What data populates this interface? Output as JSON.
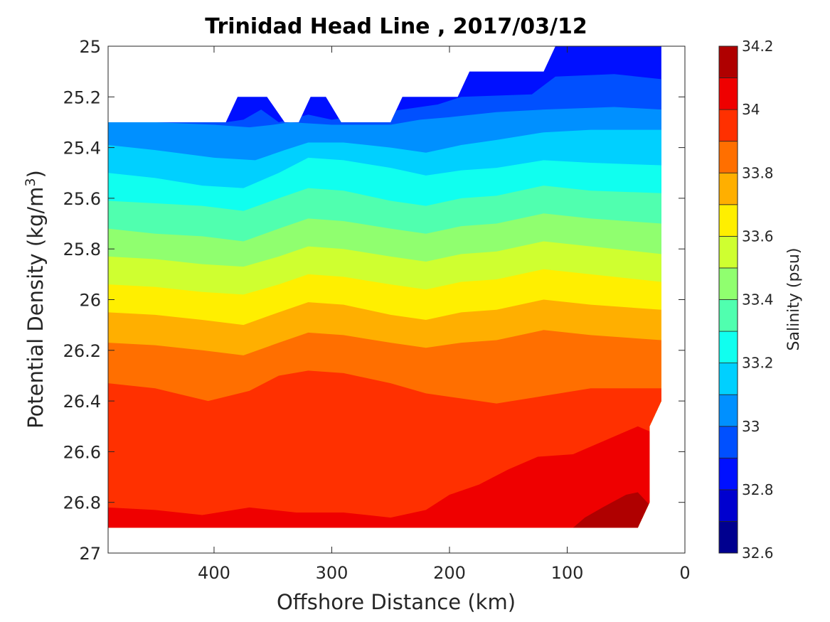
{
  "chart_data": {
    "type": "contour",
    "title": "Trinidad Head Line , 2017/03/12",
    "xlabel": "Offshore Distance (km)",
    "ylabel_main": "Potential Density (kg/m",
    "ylabel_sup": "3",
    "ylabel_close": ")",
    "colorbar_label": "Salinity (psu)",
    "xlim": [
      490,
      0
    ],
    "ylim": [
      25,
      27
    ],
    "x_ticks": [
      400,
      300,
      200,
      100,
      0
    ],
    "x_tick_labels": [
      "400",
      "300",
      "200",
      "100",
      "0"
    ],
    "y_ticks": [
      25,
      25.2,
      25.4,
      25.6,
      25.8,
      26,
      26.2,
      26.4,
      26.6,
      26.8,
      27
    ],
    "y_tick_labels": [
      "25",
      "25.2",
      "25.4",
      "25.6",
      "25.8",
      "26",
      "26.2",
      "26.4",
      "26.6",
      "26.8",
      "27"
    ],
    "colorbar_ticks": [
      34.2,
      34,
      33.8,
      33.6,
      33.4,
      33.2,
      33,
      32.8,
      32.6
    ],
    "colorbar_tick_labels": [
      "34.2",
      "34",
      "33.8",
      "33.6",
      "33.4",
      "33.2",
      "33",
      "32.8",
      "32.6"
    ],
    "colorbar_levels": [
      {
        "min": 32.6,
        "max": 32.7,
        "color": "#00008f"
      },
      {
        "min": 32.7,
        "max": 32.8,
        "color": "#0000cf"
      },
      {
        "min": 32.8,
        "max": 32.9,
        "color": "#0010ff"
      },
      {
        "min": 32.9,
        "max": 33.0,
        "color": "#0050ff"
      },
      {
        "min": 33.0,
        "max": 33.1,
        "color": "#0090ff"
      },
      {
        "min": 33.1,
        "max": 33.2,
        "color": "#00d0ff"
      },
      {
        "min": 33.2,
        "max": 33.3,
        "color": "#10ffef"
      },
      {
        "min": 33.3,
        "max": 33.4,
        "color": "#50ffaf"
      },
      {
        "min": 33.4,
        "max": 33.5,
        "color": "#90ff6f"
      },
      {
        "min": 33.5,
        "max": 33.6,
        "color": "#cfff30"
      },
      {
        "min": 33.6,
        "max": 33.7,
        "color": "#ffef00"
      },
      {
        "min": 33.7,
        "max": 33.8,
        "color": "#ffaf00"
      },
      {
        "min": 33.8,
        "max": 33.9,
        "color": "#ff6f00"
      },
      {
        "min": 33.9,
        "max": 34.0,
        "color": "#ff3000"
      },
      {
        "min": 34.0,
        "max": 34.1,
        "color": "#ef0000"
      },
      {
        "min": 34.1,
        "max": 34.2,
        "color": "#af0000"
      }
    ],
    "data_coverage": {
      "top_boundary": [
        {
          "x": 490,
          "y": 25.3
        },
        {
          "x": 390,
          "y": 25.3
        },
        {
          "x": 380,
          "y": 25.2
        },
        {
          "x": 355,
          "y": 25.2
        },
        {
          "x": 340,
          "y": 25.3
        },
        {
          "x": 328,
          "y": 25.3
        },
        {
          "x": 318,
          "y": 25.2
        },
        {
          "x": 305,
          "y": 25.2
        },
        {
          "x": 292,
          "y": 25.3
        },
        {
          "x": 250,
          "y": 25.3
        },
        {
          "x": 240,
          "y": 25.2
        },
        {
          "x": 193,
          "y": 25.2
        },
        {
          "x": 183,
          "y": 25.1
        },
        {
          "x": 120,
          "y": 25.1
        },
        {
          "x": 110,
          "y": 25.0
        },
        {
          "x": 20,
          "y": 25.0
        }
      ],
      "right_boundary": [
        {
          "x": 20,
          "y": 25.0
        },
        {
          "x": 20,
          "y": 26.4
        },
        {
          "x": 30,
          "y": 26.5
        },
        {
          "x": 30,
          "y": 26.8
        },
        {
          "x": 40,
          "y": 26.9
        }
      ],
      "bottom_y": 26.9
    },
    "isohalines": [
      {
        "value": 32.9,
        "points": [
          {
            "x": 390,
            "y": 25.3
          },
          {
            "x": 375,
            "y": 25.29
          },
          {
            "x": 360,
            "y": 25.25
          },
          {
            "x": 345,
            "y": 25.3
          },
          {
            "x": 320,
            "y": 25.27
          },
          {
            "x": 300,
            "y": 25.29
          },
          {
            "x": 240,
            "y": 25.25
          },
          {
            "x": 210,
            "y": 25.23
          },
          {
            "x": 190,
            "y": 25.2
          },
          {
            "x": 130,
            "y": 25.19
          },
          {
            "x": 110,
            "y": 25.12
          },
          {
            "x": 60,
            "y": 25.11
          },
          {
            "x": 20,
            "y": 25.13
          }
        ]
      },
      {
        "value": 33.0,
        "points": [
          {
            "x": 490,
            "y": 25.3
          },
          {
            "x": 450,
            "y": 25.3
          },
          {
            "x": 400,
            "y": 25.31
          },
          {
            "x": 370,
            "y": 25.32
          },
          {
            "x": 350,
            "y": 25.31
          },
          {
            "x": 335,
            "y": 25.3
          },
          {
            "x": 300,
            "y": 25.31
          },
          {
            "x": 250,
            "y": 25.31
          },
          {
            "x": 225,
            "y": 25.29
          },
          {
            "x": 200,
            "y": 25.28
          },
          {
            "x": 160,
            "y": 25.26
          },
          {
            "x": 120,
            "y": 25.25
          },
          {
            "x": 60,
            "y": 25.24
          },
          {
            "x": 20,
            "y": 25.25
          }
        ]
      },
      {
        "value": 33.1,
        "points": [
          {
            "x": 490,
            "y": 25.39
          },
          {
            "x": 450,
            "y": 25.41
          },
          {
            "x": 400,
            "y": 25.44
          },
          {
            "x": 365,
            "y": 25.45
          },
          {
            "x": 340,
            "y": 25.41
          },
          {
            "x": 320,
            "y": 25.38
          },
          {
            "x": 290,
            "y": 25.38
          },
          {
            "x": 250,
            "y": 25.4
          },
          {
            "x": 220,
            "y": 25.42
          },
          {
            "x": 190,
            "y": 25.39
          },
          {
            "x": 160,
            "y": 25.37
          },
          {
            "x": 120,
            "y": 25.34
          },
          {
            "x": 80,
            "y": 25.33
          },
          {
            "x": 20,
            "y": 25.33
          }
        ]
      },
      {
        "value": 33.2,
        "points": [
          {
            "x": 490,
            "y": 25.5
          },
          {
            "x": 450,
            "y": 25.52
          },
          {
            "x": 410,
            "y": 25.55
          },
          {
            "x": 375,
            "y": 25.56
          },
          {
            "x": 345,
            "y": 25.5
          },
          {
            "x": 320,
            "y": 25.44
          },
          {
            "x": 290,
            "y": 25.45
          },
          {
            "x": 250,
            "y": 25.48
          },
          {
            "x": 220,
            "y": 25.51
          },
          {
            "x": 190,
            "y": 25.49
          },
          {
            "x": 160,
            "y": 25.48
          },
          {
            "x": 120,
            "y": 25.45
          },
          {
            "x": 80,
            "y": 25.46
          },
          {
            "x": 20,
            "y": 25.47
          }
        ]
      },
      {
        "value": 33.3,
        "points": [
          {
            "x": 490,
            "y": 25.61
          },
          {
            "x": 450,
            "y": 25.62
          },
          {
            "x": 410,
            "y": 25.63
          },
          {
            "x": 375,
            "y": 25.65
          },
          {
            "x": 345,
            "y": 25.6
          },
          {
            "x": 320,
            "y": 25.56
          },
          {
            "x": 290,
            "y": 25.57
          },
          {
            "x": 250,
            "y": 25.61
          },
          {
            "x": 220,
            "y": 25.63
          },
          {
            "x": 190,
            "y": 25.6
          },
          {
            "x": 160,
            "y": 25.59
          },
          {
            "x": 120,
            "y": 25.55
          },
          {
            "x": 80,
            "y": 25.57
          },
          {
            "x": 20,
            "y": 25.58
          }
        ]
      },
      {
        "value": 33.4,
        "points": [
          {
            "x": 490,
            "y": 25.72
          },
          {
            "x": 450,
            "y": 25.74
          },
          {
            "x": 410,
            "y": 25.75
          },
          {
            "x": 375,
            "y": 25.77
          },
          {
            "x": 345,
            "y": 25.72
          },
          {
            "x": 320,
            "y": 25.68
          },
          {
            "x": 290,
            "y": 25.69
          },
          {
            "x": 250,
            "y": 25.72
          },
          {
            "x": 220,
            "y": 25.74
          },
          {
            "x": 190,
            "y": 25.71
          },
          {
            "x": 160,
            "y": 25.7
          },
          {
            "x": 120,
            "y": 25.66
          },
          {
            "x": 80,
            "y": 25.68
          },
          {
            "x": 20,
            "y": 25.7
          }
        ]
      },
      {
        "value": 33.5,
        "points": [
          {
            "x": 490,
            "y": 25.83
          },
          {
            "x": 450,
            "y": 25.84
          },
          {
            "x": 410,
            "y": 25.86
          },
          {
            "x": 375,
            "y": 25.87
          },
          {
            "x": 345,
            "y": 25.83
          },
          {
            "x": 320,
            "y": 25.79
          },
          {
            "x": 290,
            "y": 25.8
          },
          {
            "x": 250,
            "y": 25.83
          },
          {
            "x": 220,
            "y": 25.85
          },
          {
            "x": 190,
            "y": 25.82
          },
          {
            "x": 160,
            "y": 25.81
          },
          {
            "x": 120,
            "y": 25.77
          },
          {
            "x": 80,
            "y": 25.79
          },
          {
            "x": 20,
            "y": 25.82
          }
        ]
      },
      {
        "value": 33.6,
        "points": [
          {
            "x": 490,
            "y": 25.94
          },
          {
            "x": 450,
            "y": 25.95
          },
          {
            "x": 410,
            "y": 25.97
          },
          {
            "x": 375,
            "y": 25.98
          },
          {
            "x": 345,
            "y": 25.94
          },
          {
            "x": 320,
            "y": 25.9
          },
          {
            "x": 290,
            "y": 25.91
          },
          {
            "x": 250,
            "y": 25.94
          },
          {
            "x": 220,
            "y": 25.96
          },
          {
            "x": 190,
            "y": 25.93
          },
          {
            "x": 160,
            "y": 25.92
          },
          {
            "x": 120,
            "y": 25.88
          },
          {
            "x": 80,
            "y": 25.9
          },
          {
            "x": 20,
            "y": 25.93
          }
        ]
      },
      {
        "value": 33.7,
        "points": [
          {
            "x": 490,
            "y": 26.05
          },
          {
            "x": 450,
            "y": 26.06
          },
          {
            "x": 410,
            "y": 26.08
          },
          {
            "x": 375,
            "y": 26.1
          },
          {
            "x": 345,
            "y": 26.05
          },
          {
            "x": 320,
            "y": 26.01
          },
          {
            "x": 290,
            "y": 26.02
          },
          {
            "x": 250,
            "y": 26.06
          },
          {
            "x": 220,
            "y": 26.08
          },
          {
            "x": 190,
            "y": 26.05
          },
          {
            "x": 160,
            "y": 26.04
          },
          {
            "x": 120,
            "y": 26.0
          },
          {
            "x": 80,
            "y": 26.02
          },
          {
            "x": 20,
            "y": 26.04
          }
        ]
      },
      {
        "value": 33.8,
        "points": [
          {
            "x": 490,
            "y": 26.17
          },
          {
            "x": 450,
            "y": 26.18
          },
          {
            "x": 410,
            "y": 26.2
          },
          {
            "x": 375,
            "y": 26.22
          },
          {
            "x": 345,
            "y": 26.17
          },
          {
            "x": 320,
            "y": 26.13
          },
          {
            "x": 290,
            "y": 26.14
          },
          {
            "x": 250,
            "y": 26.17
          },
          {
            "x": 220,
            "y": 26.19
          },
          {
            "x": 190,
            "y": 26.17
          },
          {
            "x": 160,
            "y": 26.16
          },
          {
            "x": 120,
            "y": 26.12
          },
          {
            "x": 80,
            "y": 26.14
          },
          {
            "x": 20,
            "y": 26.16
          }
        ]
      },
      {
        "value": 33.9,
        "points": [
          {
            "x": 490,
            "y": 26.33
          },
          {
            "x": 450,
            "y": 26.35
          },
          {
            "x": 405,
            "y": 26.4
          },
          {
            "x": 370,
            "y": 26.36
          },
          {
            "x": 345,
            "y": 26.3
          },
          {
            "x": 320,
            "y": 26.28
          },
          {
            "x": 290,
            "y": 26.29
          },
          {
            "x": 250,
            "y": 26.33
          },
          {
            "x": 220,
            "y": 26.37
          },
          {
            "x": 190,
            "y": 26.39
          },
          {
            "x": 160,
            "y": 26.41
          },
          {
            "x": 120,
            "y": 26.38
          },
          {
            "x": 80,
            "y": 26.35
          },
          {
            "x": 20,
            "y": 26.35
          }
        ]
      },
      {
        "value": 34.0,
        "points": [
          {
            "x": 490,
            "y": 26.82
          },
          {
            "x": 450,
            "y": 26.83
          },
          {
            "x": 410,
            "y": 26.85
          },
          {
            "x": 370,
            "y": 26.82
          },
          {
            "x": 330,
            "y": 26.84
          },
          {
            "x": 290,
            "y": 26.84
          },
          {
            "x": 250,
            "y": 26.86
          },
          {
            "x": 220,
            "y": 26.83
          },
          {
            "x": 200,
            "y": 26.77
          },
          {
            "x": 175,
            "y": 26.73
          },
          {
            "x": 150,
            "y": 26.67
          },
          {
            "x": 125,
            "y": 26.62
          },
          {
            "x": 95,
            "y": 26.61
          },
          {
            "x": 70,
            "y": 26.56
          },
          {
            "x": 40,
            "y": 26.5
          },
          {
            "x": 30,
            "y": 26.52
          }
        ]
      },
      {
        "value": 34.1,
        "points": [
          {
            "x": 95,
            "y": 26.9
          },
          {
            "x": 85,
            "y": 26.86
          },
          {
            "x": 70,
            "y": 26.82
          },
          {
            "x": 50,
            "y": 26.77
          },
          {
            "x": 40,
            "y": 26.76
          },
          {
            "x": 32,
            "y": 26.8
          }
        ]
      }
    ]
  }
}
